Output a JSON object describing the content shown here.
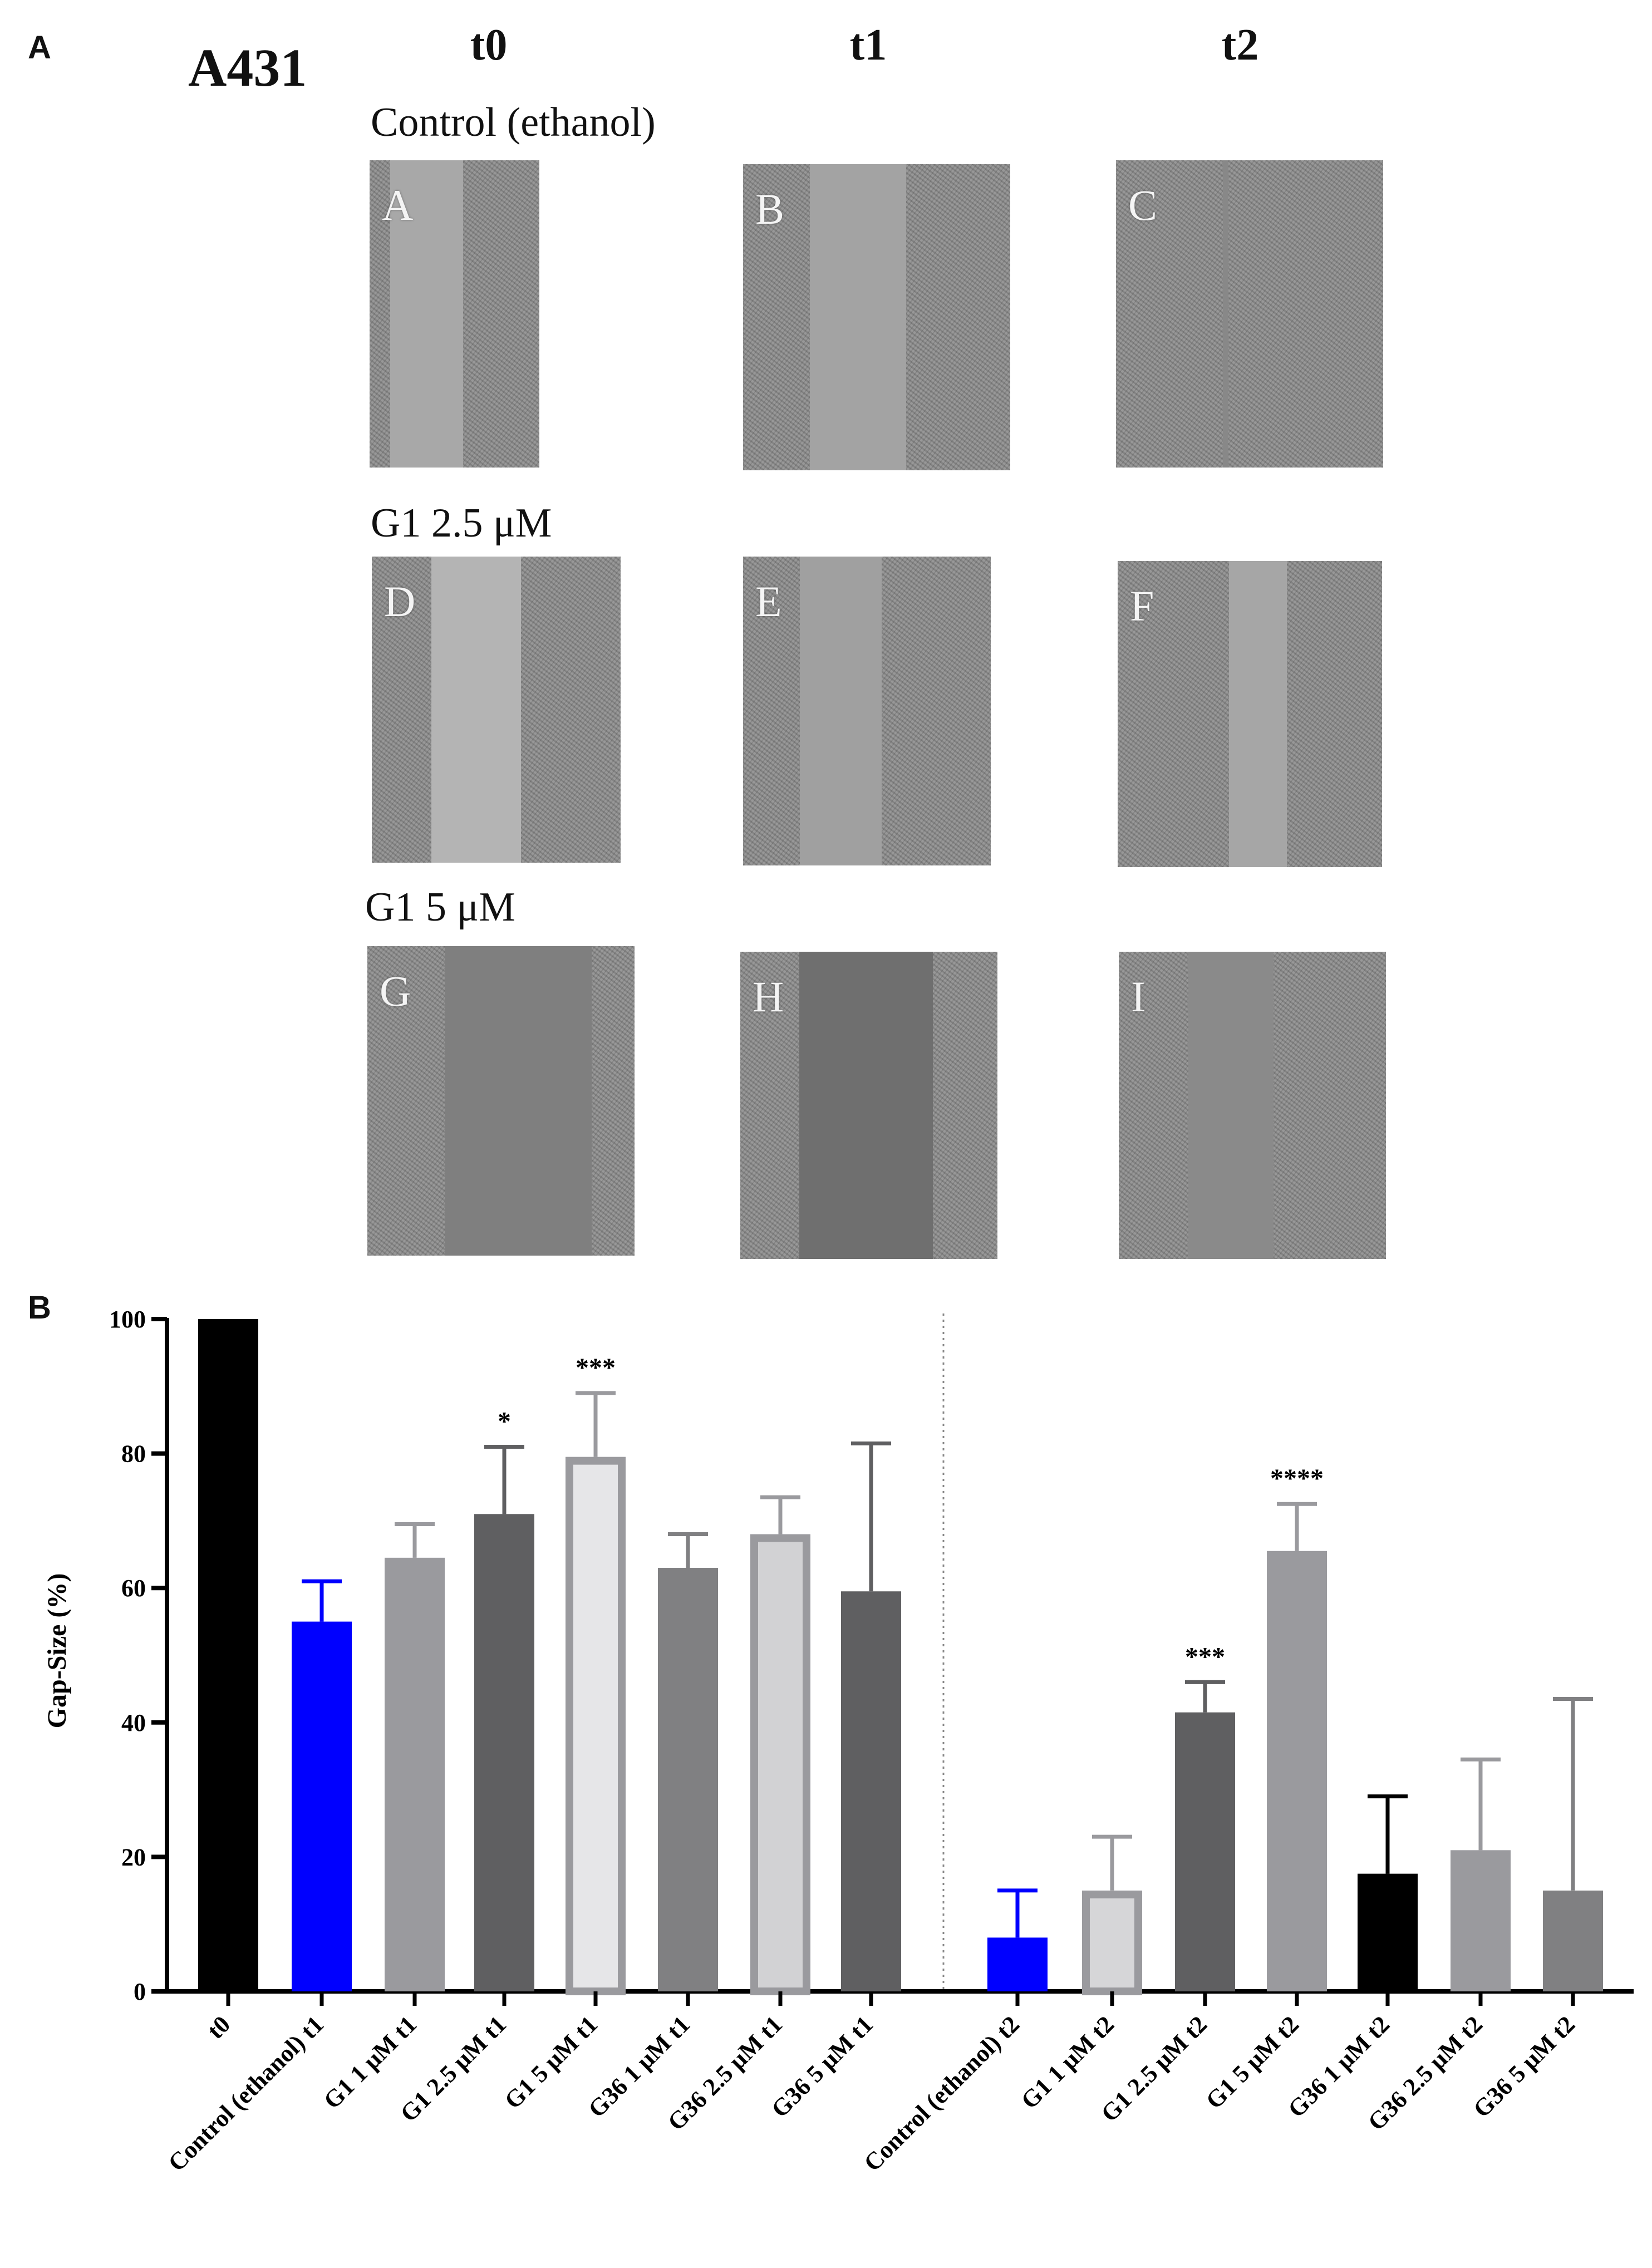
{
  "panel_a": {
    "letter": "A",
    "cell_line": "A431",
    "timepoints": [
      "t0",
      "t1",
      "t2"
    ],
    "rows": [
      {
        "condition": "Control (ethanol)",
        "images": [
          {
            "label": "A"
          },
          {
            "label": "B"
          },
          {
            "label": "C"
          }
        ]
      },
      {
        "condition": "G1 2.5 μM",
        "images": [
          {
            "label": "D"
          },
          {
            "label": "E"
          },
          {
            "label": "F"
          }
        ]
      },
      {
        "condition": "G1 5 μM",
        "images": [
          {
            "label": "G"
          },
          {
            "label": "H"
          },
          {
            "label": "I"
          }
        ]
      }
    ],
    "gap_fraction": [
      [
        0.43,
        0.36,
        0.02
      ],
      [
        0.36,
        0.33,
        0.22
      ],
      [
        0.55,
        0.52,
        0.32
      ]
    ]
  },
  "panel_b": {
    "letter": "B"
  },
  "chart_data": {
    "type": "bar",
    "ylabel": "Gap-Size (%)",
    "ylim": [
      0,
      100
    ],
    "yticks": [
      0,
      20,
      40,
      60,
      80,
      100
    ],
    "separator_after_index": 7,
    "categories": [
      "t0",
      "Control (ethanol) t1",
      "G1 1 μM t1",
      "G1 2.5 μM t1",
      "G1 5 μM t1",
      "G36 1 μM t1",
      "G36 2.5 μM t1",
      "G36 5 μM t1",
      "Control (ethanol) t2",
      "G1 1 μM t2",
      "G1 2.5 μM t2",
      "G1 5 μM t2",
      "G36 1 μM t2",
      "G36 2.5 μM t2",
      "G36 5 μM t2"
    ],
    "values": [
      100,
      55,
      64.5,
      71,
      79.5,
      63,
      68,
      59.5,
      8,
      15,
      41.5,
      65.5,
      17.5,
      21,
      15
    ],
    "errors": [
      0,
      6,
      5,
      10,
      9.5,
      5,
      5.5,
      22,
      7,
      8,
      4.5,
      7,
      11.5,
      13.5,
      28.5
    ],
    "significance": [
      "",
      "",
      "",
      "*",
      "***",
      "",
      "",
      "",
      "",
      "",
      "***",
      "****",
      "",
      "",
      ""
    ],
    "colors": [
      "#000000",
      "#0000ff",
      "#9a9a9e",
      "#5f5f61",
      "#e6e6e8",
      "#808082",
      "#d2d2d4",
      "#5f5f61",
      "#0000ff",
      "#d6d6d8",
      "#5f5f61",
      "#9a9a9e",
      "#000000",
      "#9a9a9e",
      "#808082"
    ],
    "outline_colors": [
      "#000000",
      "#0000ff",
      "#9a9a9e",
      "#5f5f61",
      "#9a9a9e",
      "#808082",
      "#9a9a9e",
      "#5f5f61",
      "#0000ff",
      "#9a9a9e",
      "#5f5f61",
      "#9a9a9e",
      "#000000",
      "#9a9a9e",
      "#808082"
    ]
  }
}
